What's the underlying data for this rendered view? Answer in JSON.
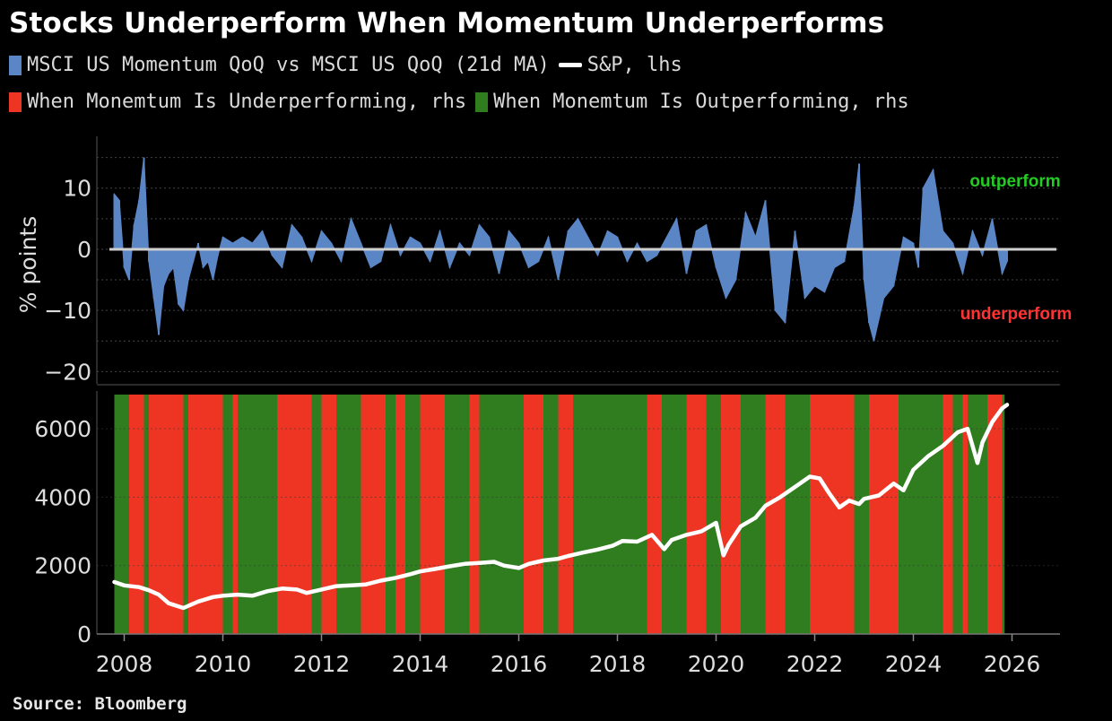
{
  "title": "Stocks Underperform When Momentum Underperforms",
  "legend": {
    "momentum": {
      "label": "MSCI US Momentum QoQ vs MSCI US QoQ (21d MA)",
      "color": "#5b86c6"
    },
    "sp": {
      "label": "S&P, lhs",
      "color": "#ffffff"
    },
    "under": {
      "label": "When Monemtum Is Underperforming, rhs",
      "color": "#ee3524"
    },
    "out": {
      "label": "When Monemtum Is Outperforming, rhs",
      "color": "#2f7d1f"
    }
  },
  "source": "Source: Bloomberg",
  "chart_data": [
    {
      "type": "area",
      "name": "momentum-relative-performance",
      "ylabel": "% points",
      "ylim": [
        -22,
        17
      ],
      "yticks": [
        10,
        0,
        -10,
        -20
      ],
      "xlim": [
        2007.7,
        2026.9
      ],
      "annotations": [
        {
          "text": "outperform",
          "color": "#22cc22"
        },
        {
          "text": "underperform",
          "color": "#ff3333"
        }
      ],
      "series": [
        {
          "name": "MSCI US Momentum QoQ vs MSCI US QoQ (21d MA)",
          "x": [
            2007.8,
            2007.9,
            2008.0,
            2008.1,
            2008.2,
            2008.3,
            2008.4,
            2008.5,
            2008.6,
            2008.7,
            2008.8,
            2008.9,
            2009.0,
            2009.1,
            2009.2,
            2009.3,
            2009.4,
            2009.5,
            2009.6,
            2009.7,
            2009.8,
            2009.9,
            2010.0,
            2010.2,
            2010.4,
            2010.6,
            2010.8,
            2011.0,
            2011.2,
            2011.4,
            2011.6,
            2011.8,
            2012.0,
            2012.2,
            2012.4,
            2012.6,
            2012.8,
            2013.0,
            2013.2,
            2013.4,
            2013.6,
            2013.8,
            2014.0,
            2014.2,
            2014.4,
            2014.6,
            2014.8,
            2015.0,
            2015.2,
            2015.4,
            2015.6,
            2015.8,
            2016.0,
            2016.2,
            2016.4,
            2016.6,
            2016.8,
            2017.0,
            2017.2,
            2017.4,
            2017.6,
            2017.8,
            2018.0,
            2018.2,
            2018.4,
            2018.6,
            2018.8,
            2019.0,
            2019.2,
            2019.4,
            2019.6,
            2019.8,
            2020.0,
            2020.2,
            2020.4,
            2020.6,
            2020.8,
            2021.0,
            2021.2,
            2021.4,
            2021.6,
            2021.8,
            2022.0,
            2022.2,
            2022.4,
            2022.6,
            2022.8,
            2022.9,
            2023.0,
            2023.1,
            2023.2,
            2023.4,
            2023.6,
            2023.8,
            2024.0,
            2024.1,
            2024.2,
            2024.4,
            2024.6,
            2024.8,
            2025.0,
            2025.2,
            2025.4,
            2025.6,
            2025.8,
            2025.9
          ],
          "values": [
            9,
            8,
            -3,
            -5,
            4,
            8,
            15,
            -2,
            -8,
            -14,
            -6,
            -4,
            -3,
            -9,
            -10,
            -5,
            -2,
            1,
            -3,
            -2,
            -5,
            -1,
            2,
            1,
            2,
            1,
            3,
            -1,
            -3,
            4,
            2,
            -2,
            3,
            1,
            -2,
            5,
            1,
            -3,
            -2,
            4,
            -1,
            2,
            1,
            -2,
            3,
            -3,
            1,
            -1,
            4,
            2,
            -4,
            3,
            1,
            -3,
            -2,
            2,
            -5,
            3,
            5,
            2,
            -1,
            3,
            2,
            -2,
            1,
            -2,
            -1,
            2,
            5,
            -4,
            3,
            4,
            -3,
            -8,
            -5,
            6,
            2,
            8,
            -10,
            -12,
            3,
            -8,
            -6,
            -7,
            -3,
            -2,
            7,
            14,
            -5,
            -12,
            -15,
            -8,
            -6,
            2,
            1,
            -3,
            10,
            13,
            3,
            1,
            -4,
            3,
            -1,
            5,
            -4,
            -2
          ]
        }
      ]
    },
    {
      "type": "line",
      "name": "sp500-regimes",
      "ylim": [
        0,
        7000
      ],
      "yticks": [
        0,
        2000,
        4000,
        6000
      ],
      "xlim": [
        2007.7,
        2026.9
      ],
      "xticks": [
        "2008",
        "2010",
        "2012",
        "2014",
        "2016",
        "2018",
        "2020",
        "2022",
        "2024",
        "2026"
      ],
      "regimes": [
        {
          "state": "out",
          "start": 2007.8,
          "end": 2008.1
        },
        {
          "state": "under",
          "start": 2008.1,
          "end": 2008.4
        },
        {
          "state": "out",
          "start": 2008.4,
          "end": 2008.5
        },
        {
          "state": "under",
          "start": 2008.5,
          "end": 2009.2
        },
        {
          "state": "out",
          "start": 2009.2,
          "end": 2009.3
        },
        {
          "state": "under",
          "start": 2009.3,
          "end": 2010.0
        },
        {
          "state": "out",
          "start": 2010.0,
          "end": 2010.2
        },
        {
          "state": "under",
          "start": 2010.2,
          "end": 2010.3
        },
        {
          "state": "out",
          "start": 2010.3,
          "end": 2011.1
        },
        {
          "state": "under",
          "start": 2011.1,
          "end": 2011.8
        },
        {
          "state": "out",
          "start": 2011.8,
          "end": 2012.0
        },
        {
          "state": "under",
          "start": 2012.0,
          "end": 2012.3
        },
        {
          "state": "out",
          "start": 2012.3,
          "end": 2012.8
        },
        {
          "state": "under",
          "start": 2012.8,
          "end": 2013.3
        },
        {
          "state": "out",
          "start": 2013.3,
          "end": 2013.5
        },
        {
          "state": "under",
          "start": 2013.5,
          "end": 2013.7
        },
        {
          "state": "out",
          "start": 2013.7,
          "end": 2014.0
        },
        {
          "state": "under",
          "start": 2014.0,
          "end": 2014.5
        },
        {
          "state": "out",
          "start": 2014.5,
          "end": 2015.0
        },
        {
          "state": "under",
          "start": 2015.0,
          "end": 2015.2
        },
        {
          "state": "out",
          "start": 2015.2,
          "end": 2016.1
        },
        {
          "state": "under",
          "start": 2016.1,
          "end": 2016.5
        },
        {
          "state": "out",
          "start": 2016.5,
          "end": 2016.8
        },
        {
          "state": "under",
          "start": 2016.8,
          "end": 2017.1
        },
        {
          "state": "out",
          "start": 2017.1,
          "end": 2018.6
        },
        {
          "state": "under",
          "start": 2018.6,
          "end": 2018.9
        },
        {
          "state": "out",
          "start": 2018.9,
          "end": 2019.4
        },
        {
          "state": "under",
          "start": 2019.4,
          "end": 2019.8
        },
        {
          "state": "out",
          "start": 2019.8,
          "end": 2020.1
        },
        {
          "state": "under",
          "start": 2020.1,
          "end": 2020.5
        },
        {
          "state": "out",
          "start": 2020.5,
          "end": 2021.0
        },
        {
          "state": "under",
          "start": 2021.0,
          "end": 2021.4
        },
        {
          "state": "out",
          "start": 2021.4,
          "end": 2021.9
        },
        {
          "state": "under",
          "start": 2021.9,
          "end": 2022.8
        },
        {
          "state": "out",
          "start": 2022.8,
          "end": 2023.1
        },
        {
          "state": "under",
          "start": 2023.1,
          "end": 2023.7
        },
        {
          "state": "out",
          "start": 2023.7,
          "end": 2024.6
        },
        {
          "state": "under",
          "start": 2024.6,
          "end": 2024.8
        },
        {
          "state": "out",
          "start": 2024.8,
          "end": 2025.0
        },
        {
          "state": "under",
          "start": 2025.0,
          "end": 2025.1
        },
        {
          "state": "out",
          "start": 2025.1,
          "end": 2025.5
        },
        {
          "state": "under",
          "start": 2025.5,
          "end": 2025.8
        },
        {
          "state": "out",
          "start": 2025.8,
          "end": 2025.85
        }
      ],
      "series": [
        {
          "name": "S&P, lhs",
          "x": [
            2007.8,
            2008.0,
            2008.3,
            2008.5,
            2008.7,
            2008.9,
            2009.2,
            2009.5,
            2009.8,
            2010.0,
            2010.3,
            2010.6,
            2010.9,
            2011.2,
            2011.5,
            2011.7,
            2012.0,
            2012.3,
            2012.6,
            2012.9,
            2013.2,
            2013.5,
            2013.8,
            2014.0,
            2014.3,
            2014.6,
            2014.9,
            2015.2,
            2015.5,
            2015.7,
            2016.0,
            2016.2,
            2016.5,
            2016.8,
            2017.0,
            2017.3,
            2017.6,
            2017.9,
            2018.1,
            2018.4,
            2018.7,
            2018.95,
            2019.1,
            2019.4,
            2019.7,
            2020.0,
            2020.15,
            2020.25,
            2020.5,
            2020.8,
            2021.0,
            2021.3,
            2021.6,
            2021.9,
            2022.1,
            2022.3,
            2022.5,
            2022.7,
            2022.9,
            2023.0,
            2023.3,
            2023.6,
            2023.8,
            2024.0,
            2024.3,
            2024.6,
            2024.9,
            2025.1,
            2025.3,
            2025.4,
            2025.6,
            2025.8,
            2025.9
          ],
          "values": [
            1520,
            1420,
            1370,
            1280,
            1150,
            900,
            760,
            950,
            1080,
            1120,
            1150,
            1120,
            1250,
            1330,
            1300,
            1200,
            1300,
            1400,
            1420,
            1450,
            1560,
            1640,
            1750,
            1830,
            1900,
            1980,
            2050,
            2080,
            2110,
            2000,
            1930,
            2050,
            2150,
            2200,
            2280,
            2380,
            2470,
            2580,
            2720,
            2700,
            2900,
            2480,
            2750,
            2900,
            3000,
            3250,
            2300,
            2600,
            3150,
            3400,
            3750,
            4000,
            4300,
            4600,
            4550,
            4100,
            3700,
            3900,
            3800,
            3950,
            4050,
            4400,
            4200,
            4800,
            5200,
            5500,
            5900,
            6000,
            5000,
            5600,
            6200,
            6600,
            6700
          ]
        }
      ]
    }
  ]
}
